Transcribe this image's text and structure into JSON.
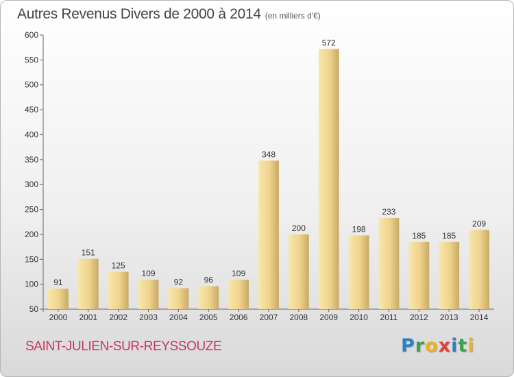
{
  "chart_data": {
    "type": "bar",
    "title": "Autres Revenus Divers de 2000 à 2014",
    "subtitle": "(en milliers d'€)",
    "xlabel": "",
    "ylabel": "",
    "categories": [
      "2000",
      "2001",
      "2002",
      "2003",
      "2004",
      "2005",
      "2006",
      "2007",
      "2008",
      "2009",
      "2010",
      "2011",
      "2012",
      "2013",
      "2014"
    ],
    "values": [
      91,
      151,
      125,
      109,
      92,
      96,
      109,
      348,
      200,
      572,
      198,
      233,
      185,
      185,
      209
    ],
    "ylim": [
      50,
      600
    ],
    "yticks": [
      50,
      100,
      150,
      200,
      250,
      300,
      350,
      400,
      450,
      500,
      550,
      600
    ],
    "grid": false,
    "colors": {
      "bar_light": "#f7e4a4",
      "bar_dark": "#c9ad6a",
      "axis": "#666666"
    }
  },
  "footer": {
    "commune": "SAINT-JULIEN-SUR-REYSSOUZE",
    "logo_letters": [
      "P",
      "r",
      "o",
      "x",
      "i",
      "t",
      "i"
    ]
  }
}
